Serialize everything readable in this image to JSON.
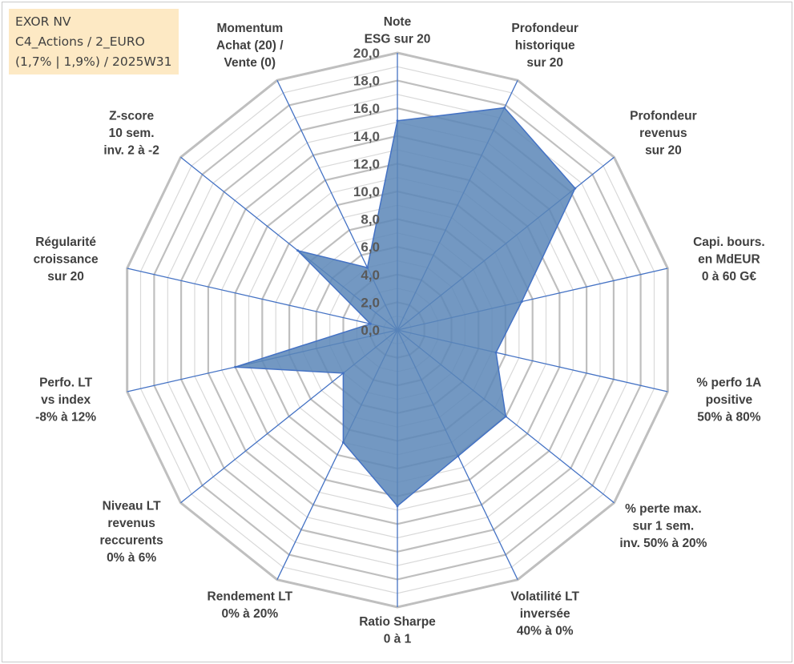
{
  "title_box": {
    "line1": "EXOR NV",
    "line2": "C4_Actions / 2_EURO",
    "line3": "(1,7% | 1,9%) / 2025W31"
  },
  "colors": {
    "fill": "#5b86b7",
    "stroke": "#4472c4",
    "grid_outer": "#bfbfbf",
    "grid_inner": "#d9d9d9",
    "axis": "#4472c4"
  },
  "chart_data": {
    "type": "radar",
    "title": "",
    "rmin": 0,
    "rmax": 20,
    "grid": true,
    "ticks": [
      "0,0",
      "2,0",
      "4,0",
      "6,0",
      "8,0",
      "10,0",
      "12,0",
      "14,0",
      "16,0",
      "18,0",
      "20,0"
    ],
    "axes": [
      [
        "Note",
        "ESG sur 20"
      ],
      [
        "Profondeur",
        "historique",
        "sur 20"
      ],
      [
        "Profondeur",
        "revenus",
        "sur 20"
      ],
      [
        "Capi. bours.",
        "en MdEUR",
        "0 à 60 G€"
      ],
      [
        "% perfo 1A",
        "positive",
        "50% à 80%"
      ],
      [
        "% perte max.",
        "sur 1 sem.",
        "inv. 50% à 20%"
      ],
      [
        "Volatilité LT",
        "inversée",
        "40% à 0%"
      ],
      [
        "Ratio Sharpe",
        "0 à 1"
      ],
      [
        "Rendement LT",
        "0% à 20%"
      ],
      [
        "Niveau LT",
        "revenus",
        "reccurents",
        "0% à 6%"
      ],
      [
        "Perfo. LT",
        "vs index",
        "-8% à 12%"
      ],
      [
        "Régularité",
        "croissance",
        "sur 20"
      ],
      [
        "Z-score",
        "10 sem.",
        "inv. 2 à -2"
      ],
      [
        "Momentum",
        "Achat (20) /",
        "Vente (0)"
      ]
    ],
    "series": [
      {
        "values": [
          15.1,
          17.8,
          16.4,
          9.2,
          7.3,
          10.0,
          10.1,
          12.7,
          9.0,
          5.0,
          12.0,
          2.0,
          9.2,
          5.0
        ]
      }
    ]
  }
}
